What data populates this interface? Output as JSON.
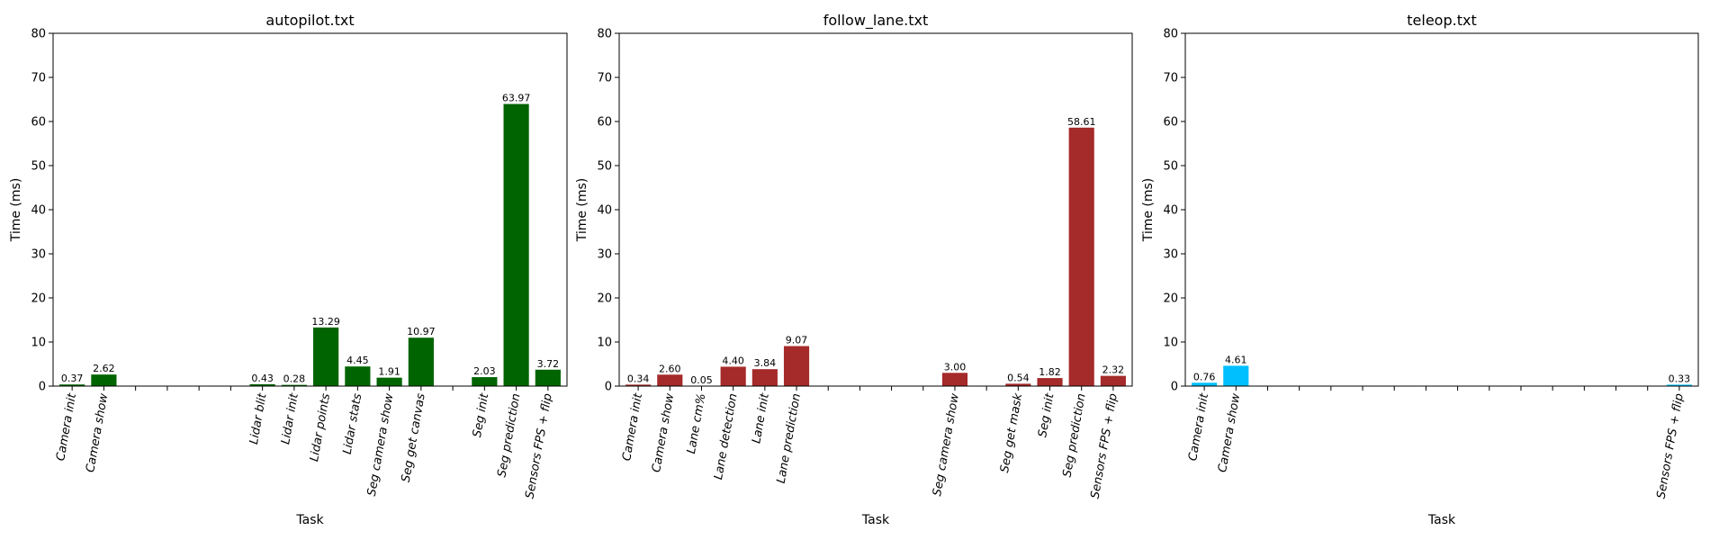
{
  "chart_data": [
    {
      "type": "bar",
      "title": "autopilot.txt",
      "xlabel": "Task",
      "ylabel": "Time (ms)",
      "ylim": [
        0,
        80
      ],
      "yticks": [
        0,
        10,
        20,
        30,
        40,
        50,
        60,
        70,
        80
      ],
      "grid": false,
      "color": "#006400",
      "categories": [
        "Camera init",
        "Camera show",
        "",
        "",
        "",
        "",
        "Lidar blit",
        "Lidar init",
        "Lidar points",
        "Lidar stats",
        "Seg camera show",
        "Seg get canvas",
        "",
        "Seg init",
        "Seg prediction",
        "Sensors FPS + flip"
      ],
      "values": [
        0.37,
        2.62,
        null,
        null,
        null,
        null,
        0.43,
        0.28,
        13.29,
        4.45,
        1.91,
        10.97,
        null,
        2.03,
        63.97,
        3.72
      ],
      "labels": [
        "0.37",
        "2.62",
        "",
        "",
        "",
        "",
        "0.43",
        "0.28",
        "13.29",
        "4.45",
        "1.91",
        "10.97",
        "",
        "2.03",
        "63.97",
        "3.72"
      ]
    },
    {
      "type": "bar",
      "title": "follow_lane.txt",
      "xlabel": "Task",
      "ylabel": "Time (ms)",
      "ylim": [
        0,
        80
      ],
      "yticks": [
        0,
        10,
        20,
        30,
        40,
        50,
        60,
        70,
        80
      ],
      "grid": false,
      "color": "#A52A2A",
      "categories": [
        "Camera init",
        "Camera show",
        "Lane cm%",
        "Lane detection",
        "Lane init",
        "Lane prediction",
        "",
        "",
        "",
        "",
        "Seg camera show",
        "",
        "Seg get mask",
        "Seg init",
        "Seg prediction",
        "Sensors FPS + flip"
      ],
      "values": [
        0.34,
        2.6,
        0.05,
        4.4,
        3.84,
        9.07,
        null,
        null,
        null,
        null,
        3.0,
        null,
        0.54,
        1.82,
        58.61,
        2.32
      ],
      "labels": [
        "0.34",
        "2.60",
        "0.05",
        "4.40",
        "3.84",
        "9.07",
        "",
        "",
        "",
        "",
        "3.00",
        "",
        "0.54",
        "1.82",
        "58.61",
        "2.32"
      ]
    },
    {
      "type": "bar",
      "title": "teleop.txt",
      "xlabel": "Task",
      "ylabel": "Time (ms)",
      "ylim": [
        0,
        80
      ],
      "yticks": [
        0,
        10,
        20,
        30,
        40,
        50,
        60,
        70,
        80
      ],
      "grid": false,
      "color": "#00BFFF",
      "categories": [
        "Camera init",
        "Camera show",
        "",
        "",
        "",
        "",
        "",
        "",
        "",
        "",
        "",
        "",
        "",
        "",
        "",
        "Sensors FPS + flip"
      ],
      "values": [
        0.76,
        4.61,
        null,
        null,
        null,
        null,
        null,
        null,
        null,
        null,
        null,
        null,
        null,
        null,
        null,
        0.33
      ],
      "labels": [
        "0.76",
        "4.61",
        "",
        "",
        "",
        "",
        "",
        "",
        "",
        "",
        "",
        "",
        "",
        "",
        "",
        "0.33"
      ]
    }
  ]
}
